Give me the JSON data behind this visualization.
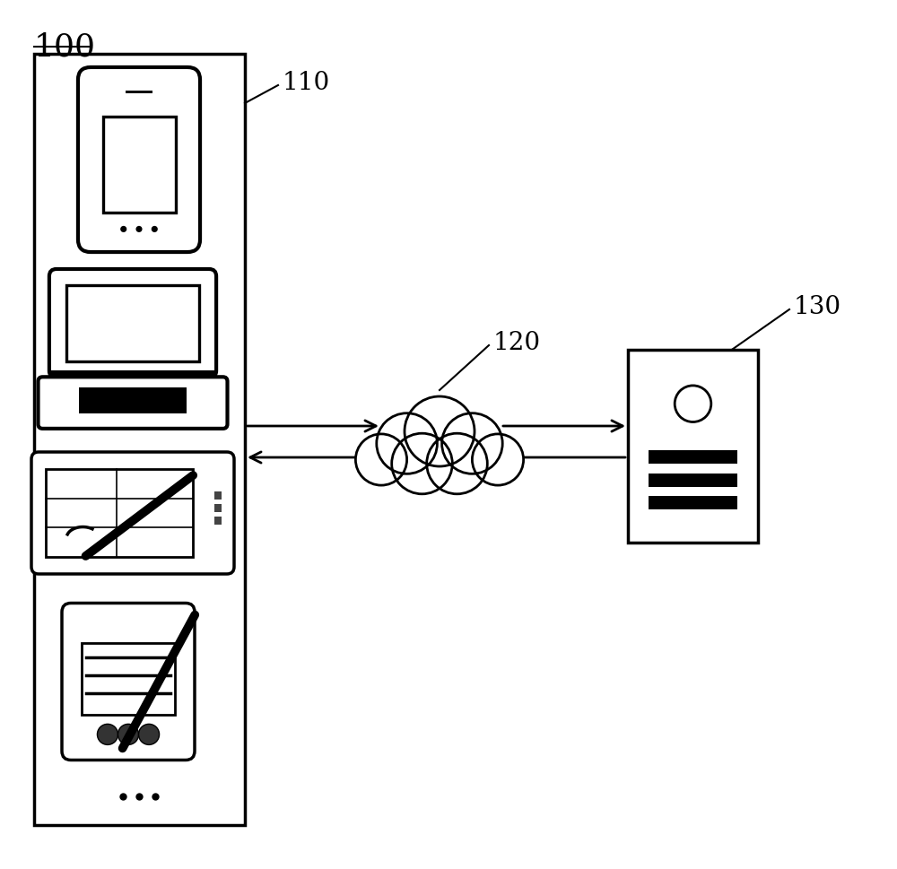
{
  "bg_color": "#ffffff",
  "label_100": "100",
  "label_110": "110",
  "label_120": "120",
  "label_130": "130",
  "line_color": "#000000",
  "fig_w": 10.0,
  "fig_h": 9.69,
  "dpi": 100
}
